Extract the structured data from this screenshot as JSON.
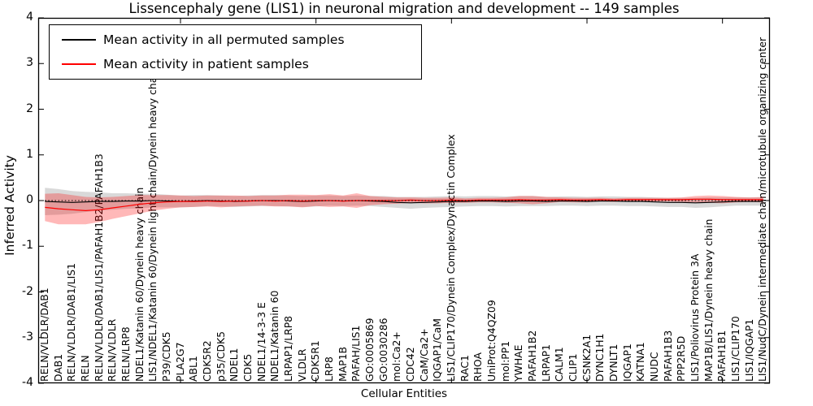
{
  "title": "Lissencephaly gene (LIS1) in neuronal migration and development -- 149 samples",
  "axes": {
    "ylabel": "Inferred Activity",
    "xlabel": "Cellular Entities",
    "ytick_labels": [
      "4",
      "3",
      "2",
      "1",
      "0",
      "-1",
      "-2",
      "-3",
      "-4"
    ]
  },
  "legend": [
    {
      "label": "Mean activity in all permuted samples",
      "color": "#000000"
    },
    {
      "label": "Mean activity in patient samples",
      "color": "#ff0000"
    }
  ],
  "chart_data": {
    "type": "line",
    "title": "Lissencephaly gene (LIS1) in neuronal migration and development -- 149 samples",
    "xlabel": "Cellular Entities",
    "ylabel": "Inferred Activity",
    "ylim": [
      -4,
      4
    ],
    "yticks": [
      4,
      3,
      2,
      1,
      0,
      -1,
      -2,
      -3,
      -4
    ],
    "xticks_major_indices": [
      10,
      20,
      30,
      40,
      50
    ],
    "grid": false,
    "legend_position": "upper left",
    "zero_line": {
      "style": "dotted",
      "color": "#000000",
      "y": 0
    },
    "categories": [
      "RELN/VLDLR/DAB1",
      "DAB1",
      "RELN/VLDLR/DAB1/LIS1",
      "RELN",
      "RELN/VLDLR/DAB1/LIS1/PAFAH1B2/PAFAH1B3",
      "RELN/VLDLR",
      "RELN/LRP8",
      "NDEL1/Katanin 60/Dynein heavy chain",
      "LIS1/NDEL1/Katanin 60/Dynein light chain/Dynein heavy chain",
      "P39/CDK5",
      "PLA2G7",
      "ABL1",
      "CDK5R2",
      "p35/CDK5",
      "NDEL1",
      "CDK5",
      "NDEL1/14-3-3 E",
      "NDEL1/Katanin 60",
      "LRPAP1/LRP8",
      "VLDLR",
      "CDK5R1",
      "LRP8",
      "MAP1B",
      "PAFAH/LIS1",
      "GO:0005869",
      "GO:0030286",
      "mol:Ca2+",
      "CDC42",
      "CaM/Ca2+",
      "IQGAP1/CaM",
      "LIS1/CLIP170/Dynein Complex/Dynactin Complex",
      "RAC1",
      "RHOA",
      "UniProt:Q4QZ09",
      "mol:PP1",
      "YWHAE",
      "PAFAH1B2",
      "LRPAP1",
      "CALM1",
      "CLIP1",
      "CSNK2A1",
      "DYNC1H1",
      "DYNLT1",
      "IQGAP1",
      "KATNA1",
      "NUDC",
      "PAFAH1B3",
      "PPP2R5D",
      "LIS1/Poliovirus Protein 3A",
      "MAP1B/LIS1/Dynein heavy chain",
      "PAFAH1B1",
      "LIS1/CLIP170",
      "LIS1/IQGAP1",
      "LIS1/NudC/Dynein intermediate chain/microtubule organizing center"
    ],
    "series": [
      {
        "name": "Mean activity in all permuted samples",
        "line_color": "#000000",
        "band_color": "#000000",
        "band_alpha": 0.15,
        "values": [
          -0.02,
          -0.03,
          -0.04,
          -0.03,
          -0.02,
          -0.02,
          -0.01,
          -0.01,
          0.0,
          -0.01,
          -0.02,
          -0.01,
          0.0,
          -0.01,
          -0.02,
          -0.01,
          0.0,
          0.0,
          -0.01,
          -0.02,
          -0.01,
          0.0,
          -0.01,
          0.0,
          -0.01,
          -0.02,
          -0.04,
          -0.05,
          -0.04,
          -0.03,
          -0.02,
          -0.02,
          -0.01,
          -0.01,
          -0.02,
          -0.01,
          -0.01,
          -0.02,
          -0.01,
          -0.01,
          -0.02,
          -0.01,
          -0.01,
          -0.02,
          -0.02,
          -0.03,
          -0.04,
          -0.04,
          -0.05,
          -0.04,
          -0.03,
          -0.02,
          -0.02,
          -0.02
        ],
        "band_halfwidth": [
          0.3,
          0.28,
          0.25,
          0.22,
          0.2,
          0.18,
          0.17,
          0.16,
          0.15,
          0.14,
          0.13,
          0.13,
          0.12,
          0.12,
          0.12,
          0.12,
          0.12,
          0.12,
          0.12,
          0.12,
          0.12,
          0.11,
          0.11,
          0.11,
          0.11,
          0.12,
          0.12,
          0.13,
          0.12,
          0.12,
          0.12,
          0.11,
          0.11,
          0.11,
          0.11,
          0.11,
          0.11,
          0.1,
          0.1,
          0.1,
          0.1,
          0.1,
          0.1,
          0.1,
          0.1,
          0.1,
          0.1,
          0.1,
          0.11,
          0.11,
          0.1,
          0.09,
          0.09,
          0.09
        ]
      },
      {
        "name": "Mean activity in patient samples",
        "line_color": "#ff0000",
        "band_color": "#ff0000",
        "band_alpha": 0.28,
        "values": [
          -0.15,
          -0.18,
          -0.2,
          -0.22,
          -0.2,
          -0.16,
          -0.12,
          -0.08,
          -0.05,
          -0.03,
          -0.02,
          -0.02,
          -0.01,
          -0.02,
          -0.01,
          -0.01,
          0.0,
          -0.01,
          0.0,
          -0.01,
          0.0,
          0.0,
          -0.01,
          0.0,
          0.0,
          0.0,
          0.0,
          0.01,
          0.0,
          0.0,
          0.01,
          0.0,
          0.01,
          0.01,
          0.01,
          0.02,
          0.01,
          0.01,
          0.02,
          0.01,
          0.01,
          0.02,
          0.01,
          0.02,
          0.02,
          0.02,
          0.02,
          0.02,
          0.03,
          0.03,
          0.02,
          0.02,
          0.02,
          0.02
        ],
        "band_halfwidth": [
          0.3,
          0.34,
          0.32,
          0.3,
          0.27,
          0.24,
          0.22,
          0.2,
          0.17,
          0.15,
          0.13,
          0.12,
          0.12,
          0.13,
          0.12,
          0.11,
          0.11,
          0.12,
          0.13,
          0.14,
          0.12,
          0.14,
          0.12,
          0.16,
          0.1,
          0.08,
          0.07,
          0.06,
          0.06,
          0.06,
          0.06,
          0.05,
          0.05,
          0.05,
          0.06,
          0.08,
          0.09,
          0.07,
          0.05,
          0.05,
          0.05,
          0.04,
          0.04,
          0.04,
          0.04,
          0.04,
          0.04,
          0.05,
          0.07,
          0.08,
          0.08,
          0.06,
          0.05,
          0.06
        ]
      }
    ]
  }
}
